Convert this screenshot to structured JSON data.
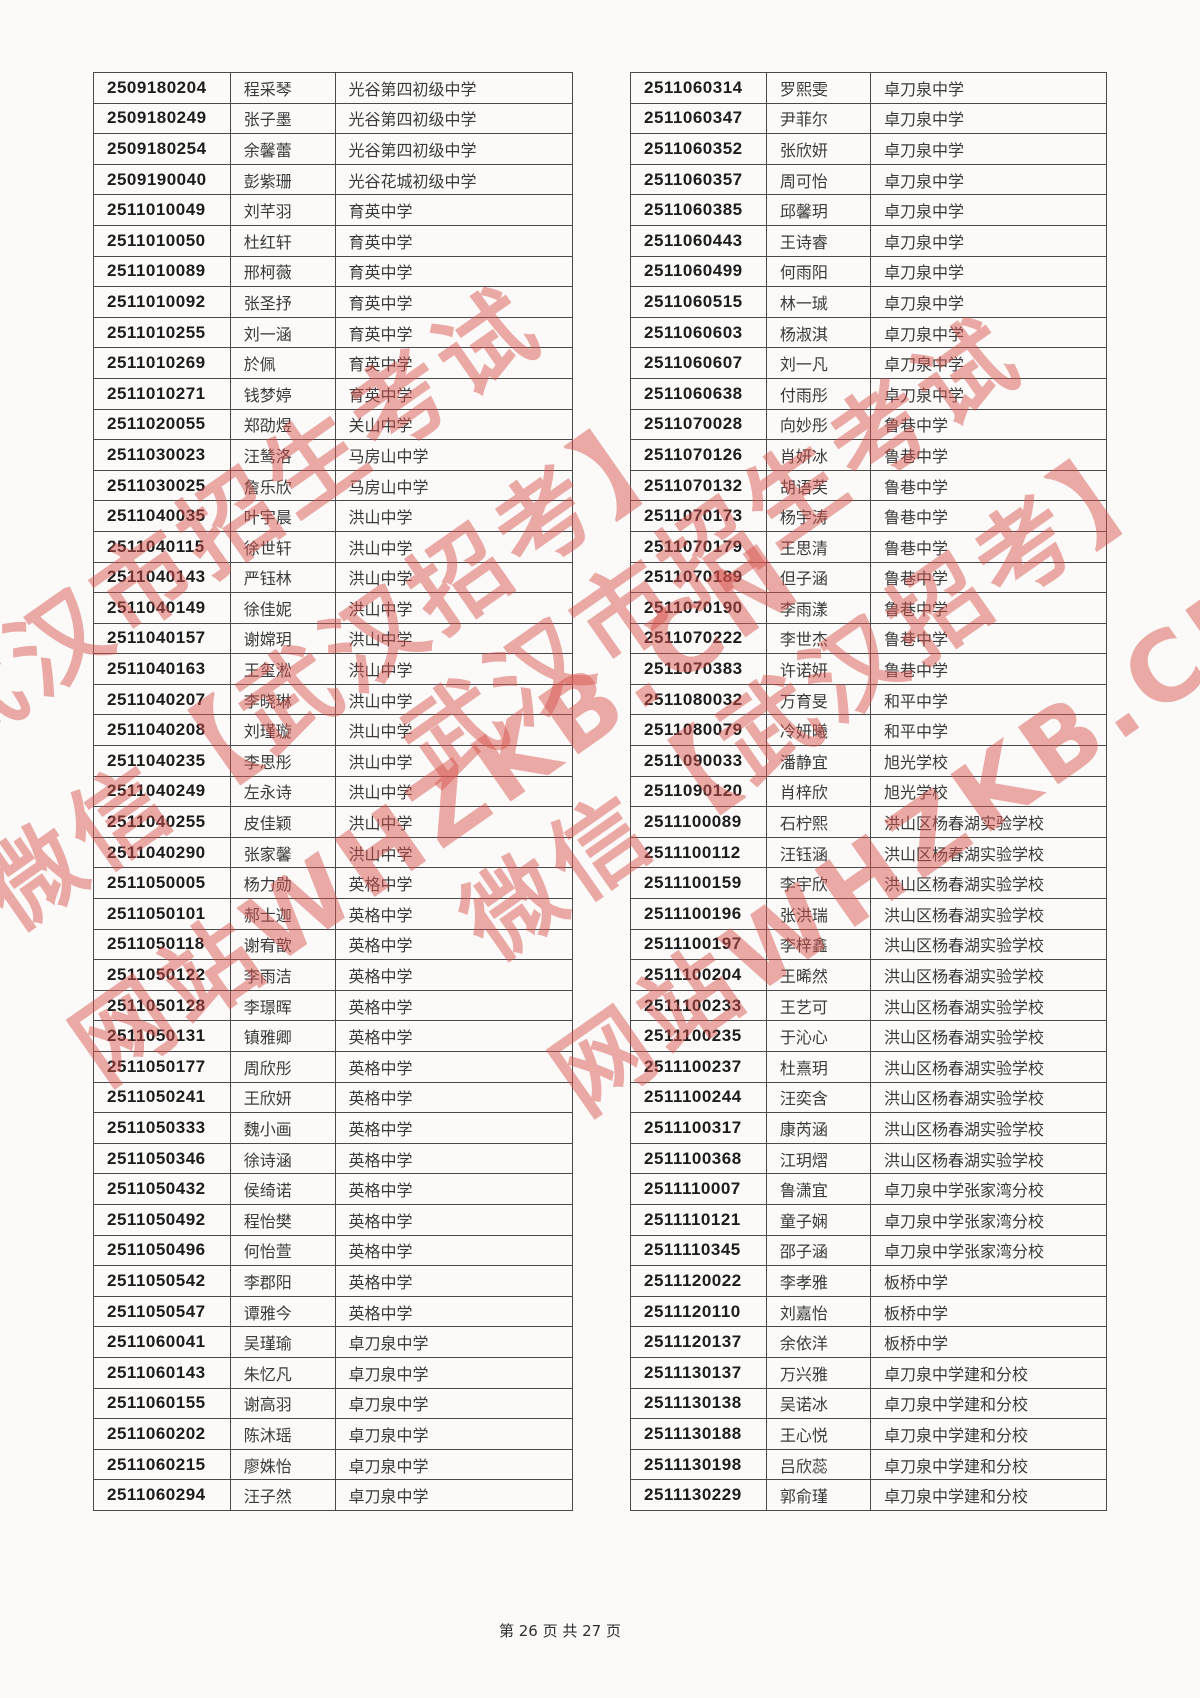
{
  "footer": {
    "text": "第 26 页 共 27 页"
  },
  "watermark": {
    "color": "#d8524c",
    "lines": [
      "武汉市招生考试",
      "微信【武汉招考】",
      "网站WHZKB.CN"
    ]
  },
  "left_table": {
    "rows": [
      {
        "id": "2509180204",
        "name": "程采琴",
        "school": "光谷第四初级中学"
      },
      {
        "id": "2509180249",
        "name": "张子墨",
        "school": "光谷第四初级中学"
      },
      {
        "id": "2509180254",
        "name": "余馨蕾",
        "school": "光谷第四初级中学"
      },
      {
        "id": "2509190040",
        "name": "彭紫珊",
        "school": "光谷花城初级中学"
      },
      {
        "id": "2511010049",
        "name": "刘芊羽",
        "school": "育英中学"
      },
      {
        "id": "2511010050",
        "name": "杜红轩",
        "school": "育英中学"
      },
      {
        "id": "2511010089",
        "name": "邢柯薇",
        "school": "育英中学"
      },
      {
        "id": "2511010092",
        "name": "张圣抒",
        "school": "育英中学"
      },
      {
        "id": "2511010255",
        "name": "刘一涵",
        "school": "育英中学"
      },
      {
        "id": "2511010269",
        "name": "於佩",
        "school": "育英中学"
      },
      {
        "id": "2511010271",
        "name": "钱梦婷",
        "school": "育英中学"
      },
      {
        "id": "2511020055",
        "name": "郑劭煜",
        "school": "关山中学"
      },
      {
        "id": "2511030023",
        "name": "汪鸶洛",
        "school": "马房山中学"
      },
      {
        "id": "2511030025",
        "name": "詹乐欣",
        "school": "马房山中学"
      },
      {
        "id": "2511040035",
        "name": "叶宇晨",
        "school": "洪山中学"
      },
      {
        "id": "2511040115",
        "name": "徐世轩",
        "school": "洪山中学"
      },
      {
        "id": "2511040143",
        "name": "严钰林",
        "school": "洪山中学"
      },
      {
        "id": "2511040149",
        "name": "徐佳妮",
        "school": "洪山中学"
      },
      {
        "id": "2511040157",
        "name": "谢嫦玥",
        "school": "洪山中学"
      },
      {
        "id": "2511040163",
        "name": "王玺淞",
        "school": "洪山中学"
      },
      {
        "id": "2511040207",
        "name": "李晓琳",
        "school": "洪山中学"
      },
      {
        "id": "2511040208",
        "name": "刘瑾璇",
        "school": "洪山中学"
      },
      {
        "id": "2511040235",
        "name": "李思彤",
        "school": "洪山中学"
      },
      {
        "id": "2511040249",
        "name": "左永诗",
        "school": "洪山中学"
      },
      {
        "id": "2511040255",
        "name": "皮佳颖",
        "school": "洪山中学"
      },
      {
        "id": "2511040290",
        "name": "张家馨",
        "school": "洪山中学"
      },
      {
        "id": "2511050005",
        "name": "杨力勋",
        "school": "英格中学"
      },
      {
        "id": "2511050101",
        "name": "郝士迦",
        "school": "英格中学"
      },
      {
        "id": "2511050118",
        "name": "谢宥歆",
        "school": "英格中学"
      },
      {
        "id": "2511050122",
        "name": "李雨洁",
        "school": "英格中学"
      },
      {
        "id": "2511050128",
        "name": "李璟晖",
        "school": "英格中学"
      },
      {
        "id": "2511050131",
        "name": "镇雅卿",
        "school": "英格中学"
      },
      {
        "id": "2511050177",
        "name": "周欣彤",
        "school": "英格中学"
      },
      {
        "id": "2511050241",
        "name": "王欣妍",
        "school": "英格中学"
      },
      {
        "id": "2511050333",
        "name": "魏小画",
        "school": "英格中学"
      },
      {
        "id": "2511050346",
        "name": "徐诗涵",
        "school": "英格中学"
      },
      {
        "id": "2511050432",
        "name": "侯绮诺",
        "school": "英格中学"
      },
      {
        "id": "2511050492",
        "name": "程怡樊",
        "school": "英格中学"
      },
      {
        "id": "2511050496",
        "name": "何怡萱",
        "school": "英格中学"
      },
      {
        "id": "2511050542",
        "name": "李郡阳",
        "school": "英格中学"
      },
      {
        "id": "2511050547",
        "name": "谭雅今",
        "school": "英格中学"
      },
      {
        "id": "2511060041",
        "name": "吴瑾瑜",
        "school": "卓刀泉中学"
      },
      {
        "id": "2511060143",
        "name": "朱忆凡",
        "school": "卓刀泉中学"
      },
      {
        "id": "2511060155",
        "name": "谢高羽",
        "school": "卓刀泉中学"
      },
      {
        "id": "2511060202",
        "name": "陈沐瑶",
        "school": "卓刀泉中学"
      },
      {
        "id": "2511060215",
        "name": "廖姝怡",
        "school": "卓刀泉中学"
      },
      {
        "id": "2511060294",
        "name": "汪子然",
        "school": "卓刀泉中学"
      }
    ]
  },
  "right_table": {
    "rows": [
      {
        "id": "2511060314",
        "name": "罗熙雯",
        "school": "卓刀泉中学"
      },
      {
        "id": "2511060347",
        "name": "尹菲尔",
        "school": "卓刀泉中学"
      },
      {
        "id": "2511060352",
        "name": "张欣妍",
        "school": "卓刀泉中学"
      },
      {
        "id": "2511060357",
        "name": "周可怡",
        "school": "卓刀泉中学"
      },
      {
        "id": "2511060385",
        "name": "邱馨玥",
        "school": "卓刀泉中学"
      },
      {
        "id": "2511060443",
        "name": "王诗睿",
        "school": "卓刀泉中学"
      },
      {
        "id": "2511060499",
        "name": "何雨阳",
        "school": "卓刀泉中学"
      },
      {
        "id": "2511060515",
        "name": "林一珹",
        "school": "卓刀泉中学"
      },
      {
        "id": "2511060603",
        "name": "杨淑淇",
        "school": "卓刀泉中学"
      },
      {
        "id": "2511060607",
        "name": "刘一凡",
        "school": "卓刀泉中学"
      },
      {
        "id": "2511060638",
        "name": "付雨彤",
        "school": "卓刀泉中学"
      },
      {
        "id": "2511070028",
        "name": "向妙彤",
        "school": "鲁巷中学"
      },
      {
        "id": "2511070126",
        "name": "肖妍冰",
        "school": "鲁巷中学"
      },
      {
        "id": "2511070132",
        "name": "胡语芙",
        "school": "鲁巷中学"
      },
      {
        "id": "2511070173",
        "name": "杨宇涛",
        "school": "鲁巷中学"
      },
      {
        "id": "2511070179",
        "name": "王思清",
        "school": "鲁巷中学"
      },
      {
        "id": "2511070189",
        "name": "但子涵",
        "school": "鲁巷中学"
      },
      {
        "id": "2511070190",
        "name": "李雨漾",
        "school": "鲁巷中学"
      },
      {
        "id": "2511070222",
        "name": "李世杰",
        "school": "鲁巷中学"
      },
      {
        "id": "2511070383",
        "name": "许诺妍",
        "school": "鲁巷中学"
      },
      {
        "id": "2511080032",
        "name": "万育旻",
        "school": "和平中学"
      },
      {
        "id": "2511080079",
        "name": "冷妍曦",
        "school": "和平中学"
      },
      {
        "id": "2511090033",
        "name": "潘静宜",
        "school": "旭光学校"
      },
      {
        "id": "2511090120",
        "name": "肖梓欣",
        "school": "旭光学校"
      },
      {
        "id": "2511100089",
        "name": "石柠熙",
        "school": "洪山区杨春湖实验学校"
      },
      {
        "id": "2511100112",
        "name": "汪钰涵",
        "school": "洪山区杨春湖实验学校"
      },
      {
        "id": "2511100159",
        "name": "李宇欣",
        "school": "洪山区杨春湖实验学校"
      },
      {
        "id": "2511100196",
        "name": "张洪瑞",
        "school": "洪山区杨春湖实验学校"
      },
      {
        "id": "2511100197",
        "name": "李梓鑫",
        "school": "洪山区杨春湖实验学校"
      },
      {
        "id": "2511100204",
        "name": "王晞然",
        "school": "洪山区杨春湖实验学校"
      },
      {
        "id": "2511100233",
        "name": "王艺可",
        "school": "洪山区杨春湖实验学校"
      },
      {
        "id": "2511100235",
        "name": "于沁心",
        "school": "洪山区杨春湖实验学校"
      },
      {
        "id": "2511100237",
        "name": "杜熹玥",
        "school": "洪山区杨春湖实验学校"
      },
      {
        "id": "2511100244",
        "name": "汪奕含",
        "school": "洪山区杨春湖实验学校"
      },
      {
        "id": "2511100317",
        "name": "康芮涵",
        "school": "洪山区杨春湖实验学校"
      },
      {
        "id": "2511100368",
        "name": "江玥熠",
        "school": "洪山区杨春湖实验学校"
      },
      {
        "id": "2511110007",
        "name": "鲁潇宜",
        "school": "卓刀泉中学张家湾分校"
      },
      {
        "id": "2511110121",
        "name": "童子娴",
        "school": "卓刀泉中学张家湾分校"
      },
      {
        "id": "2511110345",
        "name": "邵子涵",
        "school": "卓刀泉中学张家湾分校"
      },
      {
        "id": "2511120022",
        "name": "李孝雅",
        "school": "板桥中学"
      },
      {
        "id": "2511120110",
        "name": "刘嘉怡",
        "school": "板桥中学"
      },
      {
        "id": "2511120137",
        "name": "余依洋",
        "school": "板桥中学"
      },
      {
        "id": "2511130137",
        "name": "万兴雅",
        "school": "卓刀泉中学建和分校"
      },
      {
        "id": "2511130138",
        "name": "吴诺冰",
        "school": "卓刀泉中学建和分校"
      },
      {
        "id": "2511130188",
        "name": "王心悦",
        "school": "卓刀泉中学建和分校"
      },
      {
        "id": "2511130198",
        "name": "吕欣蕊",
        "school": "卓刀泉中学建和分校"
      },
      {
        "id": "2511130229",
        "name": "郭俞瑾",
        "school": "卓刀泉中学建和分校"
      }
    ]
  }
}
